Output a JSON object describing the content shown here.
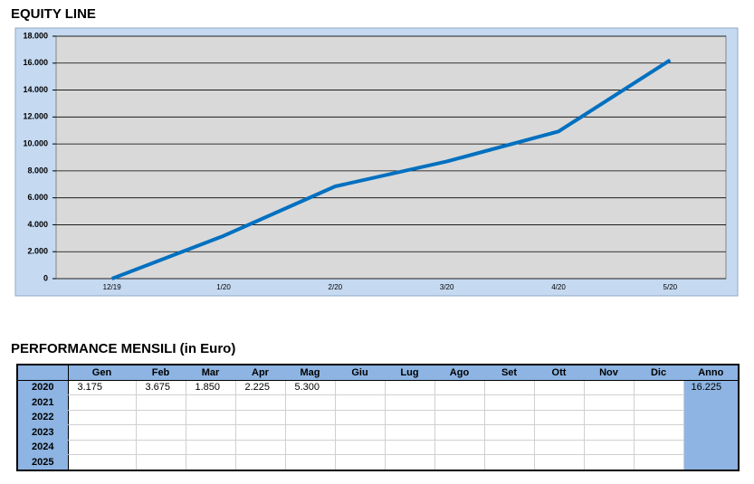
{
  "chart_data": {
    "type": "line",
    "title": "EQUITY LINE",
    "categories": [
      "12/19",
      "1/20",
      "2/20",
      "3/20",
      "4/20",
      "5/20"
    ],
    "values": [
      0,
      3175,
      6850,
      8700,
      10925,
      16225
    ],
    "color": "#0070c0",
    "ylim": [
      0,
      18000
    ],
    "yticks": [
      0,
      {
        "value": 2000,
        "label": "2.000"
      },
      {
        "value": 4000,
        "label": "4.000"
      },
      {
        "value": 6000,
        "label": "6.000"
      },
      {
        "value": 8000,
        "label": "8.000"
      },
      {
        "value": 10000,
        "label": "10.000"
      },
      {
        "value": 12000,
        "label": "12.000"
      },
      {
        "value": 14000,
        "label": "14.000"
      },
      {
        "value": 16000,
        "label": "16.000"
      },
      {
        "value": 18000,
        "label": "18.000"
      }
    ],
    "grid": true
  },
  "table": {
    "title": "PERFORMANCE MENSILI (in Euro)",
    "header": [
      "Gen",
      "Feb",
      "Mar",
      "Apr",
      "Mag",
      "Giu",
      "Lug",
      "Ago",
      "Set",
      "Ott",
      "Nov",
      "Dic",
      "Anno"
    ],
    "rows": [
      {
        "year": "2020",
        "cells": [
          "3.175",
          "3.675",
          "1.850",
          "2.225",
          "5.300"
        ],
        "total": "16.225"
      },
      {
        "year": "2021"
      },
      {
        "year": "2022"
      },
      {
        "year": "2023"
      },
      {
        "year": "2024"
      },
      {
        "year": "2025"
      }
    ]
  }
}
